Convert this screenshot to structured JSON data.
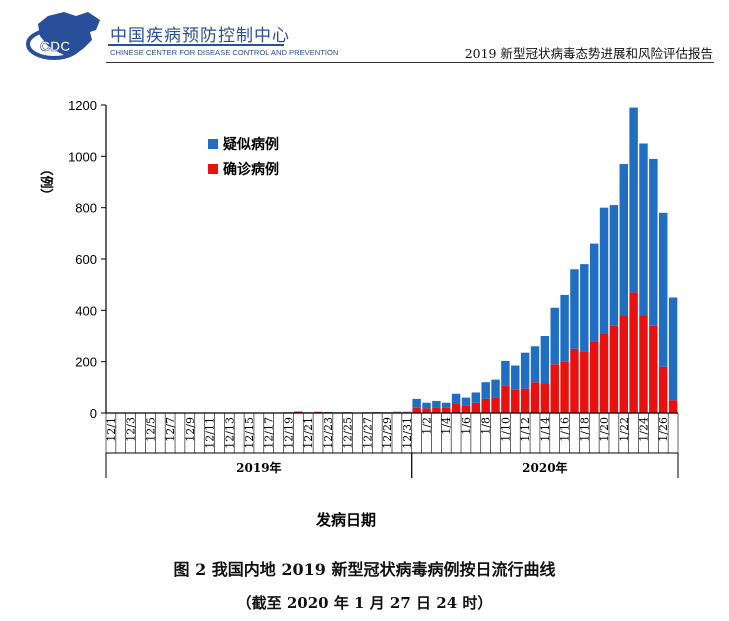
{
  "header": {
    "logo_text": "CDC",
    "org_name_cn": "中国疾病预防控制中心",
    "org_name_en": "CHINESE CENTER FOR DISEASE CONTROL AND PREVENTION",
    "report_title": "2019 新型冠状病毒态势进展和风险评估报告"
  },
  "colors": {
    "suspected": "#1f6ec2",
    "confirmed": "#e8110f",
    "axis": "#000000",
    "brand": "#2a4f9a"
  },
  "chart_data": {
    "type": "bar",
    "stacked": true,
    "ylabel": "（例）",
    "xlabel": "发病日期",
    "ylim": [
      0,
      1200
    ],
    "yticks": [
      0,
      200,
      400,
      600,
      800,
      1000,
      1200
    ],
    "legend_position": "top-left",
    "categories": [
      "12/1",
      "12/2",
      "12/3",
      "12/4",
      "12/5",
      "12/6",
      "12/7",
      "12/8",
      "12/9",
      "12/10",
      "12/11",
      "12/12",
      "12/13",
      "12/14",
      "12/15",
      "12/16",
      "12/17",
      "12/18",
      "12/19",
      "12/20",
      "12/21",
      "12/22",
      "12/23",
      "12/24",
      "12/25",
      "12/26",
      "12/27",
      "12/28",
      "12/29",
      "12/30",
      "12/31",
      "1/1",
      "1/2",
      "1/3",
      "1/4",
      "1/5",
      "1/6",
      "1/7",
      "1/8",
      "1/9",
      "1/10",
      "1/11",
      "1/12",
      "1/13",
      "1/14",
      "1/15",
      "1/16",
      "1/17",
      "1/18",
      "1/19",
      "1/20",
      "1/21",
      "1/22",
      "1/23",
      "1/24",
      "1/25",
      "1/26",
      "1/27"
    ],
    "tick_labels": [
      "12/1",
      "12/3",
      "12/5",
      "12/7",
      "12/9",
      "12/11",
      "12/13",
      "12/15",
      "12/17",
      "12/19",
      "12/21",
      "12/23",
      "12/25",
      "12/27",
      "12/29",
      "12/31",
      "1/2",
      "1/4",
      "1/6",
      "1/8",
      "1/10",
      "1/12",
      "1/14",
      "1/16",
      "1/18",
      "1/20",
      "1/22",
      "1/24",
      "1/26"
    ],
    "year_groups": [
      {
        "label": "2019年",
        "from": "12/1",
        "to": "12/31"
      },
      {
        "label": "2020年",
        "from": "1/1",
        "to": "1/27"
      }
    ],
    "series": [
      {
        "name": "确诊病例",
        "color": "#e8110f",
        "values": [
          1,
          1,
          1,
          1,
          1,
          1,
          1,
          1,
          1,
          1,
          1,
          1,
          1,
          1,
          1,
          1,
          1,
          1,
          2,
          4,
          2,
          4,
          2,
          2,
          3,
          2,
          2,
          3,
          2,
          3,
          3,
          20,
          18,
          22,
          20,
          35,
          30,
          40,
          55,
          60,
          108,
          90,
          95,
          120,
          115,
          190,
          200,
          250,
          240,
          280,
          310,
          340,
          380,
          470,
          380,
          340,
          180,
          50
        ]
      },
      {
        "name": "疑似病例",
        "color": "#1f6ec2",
        "values": [
          0,
          0,
          0,
          0,
          0,
          0,
          0,
          0,
          0,
          0,
          0,
          0,
          0,
          0,
          0,
          0,
          1,
          0,
          1,
          2,
          1,
          1,
          2,
          1,
          1,
          0,
          1,
          1,
          1,
          2,
          2,
          35,
          22,
          25,
          20,
          40,
          30,
          40,
          65,
          70,
          95,
          95,
          140,
          140,
          185,
          220,
          260,
          310,
          340,
          380,
          490,
          470,
          590,
          720,
          670,
          650,
          600,
          400
        ]
      }
    ]
  },
  "captions": {
    "line1": "图 2  我国内地 2019 新型冠状病毒病例按日流行曲线",
    "line2": "（截至 2020 年 1 月 27 日 24 时）"
  }
}
